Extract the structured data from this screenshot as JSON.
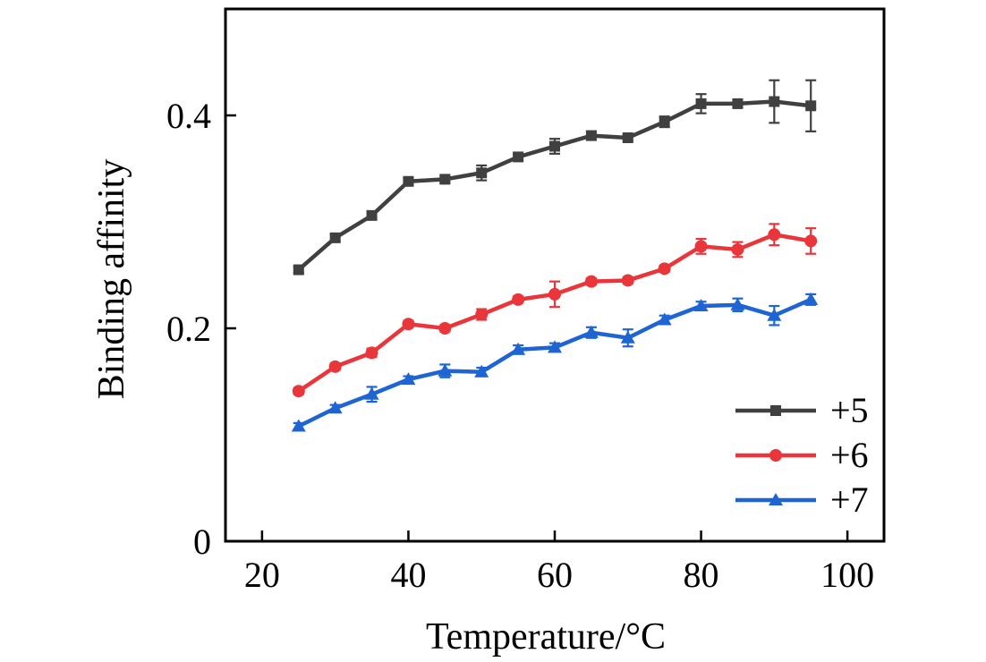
{
  "chart_data": {
    "type": "line",
    "xlabel": "Temperature/°C",
    "ylabel": "Binding affinity",
    "xlim": [
      15,
      105
    ],
    "ylim": [
      0,
      0.5
    ],
    "xticks": [
      20,
      40,
      60,
      80,
      100
    ],
    "xtick_labels": [
      "20",
      "40",
      "60",
      "80",
      "100"
    ],
    "yticks": [
      0,
      0.2,
      0.4
    ],
    "ytick_labels": [
      "0",
      "0.2",
      "0.4"
    ],
    "legend_position": "bottom-right",
    "x": [
      25,
      30,
      35,
      40,
      45,
      50,
      55,
      60,
      65,
      70,
      75,
      80,
      85,
      90,
      95
    ],
    "series": [
      {
        "name": "+5",
        "color": "#404040",
        "marker": "square",
        "values": [
          0.255,
          0.285,
          0.306,
          0.338,
          0.34,
          0.346,
          0.361,
          0.371,
          0.381,
          0.379,
          0.394,
          0.411,
          0.411,
          0.413,
          0.409
        ],
        "errors": [
          0.003,
          0.003,
          0.003,
          0.003,
          0.003,
          0.007,
          0.003,
          0.007,
          0.004,
          0.003,
          0.005,
          0.009,
          0.003,
          0.02,
          0.024
        ]
      },
      {
        "name": "+6",
        "color": "#e8363b",
        "marker": "circle",
        "values": [
          0.141,
          0.164,
          0.177,
          0.204,
          0.2,
          0.213,
          0.227,
          0.232,
          0.244,
          0.245,
          0.256,
          0.277,
          0.274,
          0.288,
          0.282
        ],
        "errors": [
          0.003,
          0.003,
          0.004,
          0.003,
          0.003,
          0.005,
          0.003,
          0.012,
          0.003,
          0.003,
          0.003,
          0.007,
          0.007,
          0.01,
          0.012
        ]
      },
      {
        "name": "+7",
        "color": "#1e64d2",
        "marker": "triangle",
        "values": [
          0.108,
          0.125,
          0.138,
          0.152,
          0.16,
          0.159,
          0.18,
          0.182,
          0.196,
          0.191,
          0.208,
          0.221,
          0.222,
          0.212,
          0.227
        ],
        "errors": [
          0.003,
          0.003,
          0.007,
          0.003,
          0.006,
          0.004,
          0.004,
          0.004,
          0.005,
          0.008,
          0.004,
          0.004,
          0.006,
          0.009,
          0.005
        ]
      }
    ]
  }
}
